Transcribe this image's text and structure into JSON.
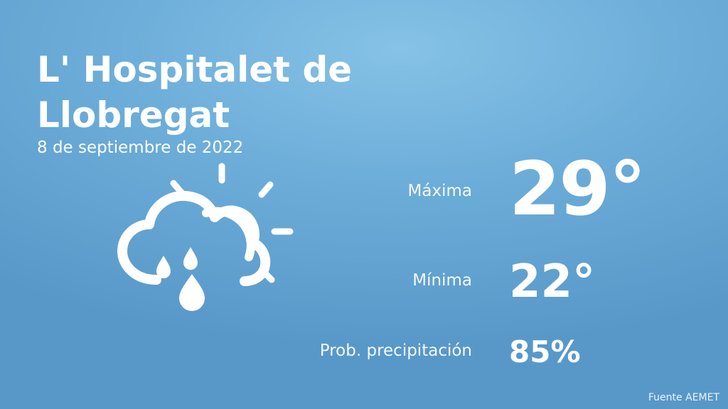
{
  "location": {
    "name": " L' Hospitalet de\nLlobregat",
    "date": "8 de septiembre de 2022"
  },
  "forecast": {
    "condition_icon": "cloud-rain-sun-icon",
    "max_label": "Máxima",
    "max_value": "29°",
    "min_label": "Mínima",
    "min_value": "22°",
    "precip_label": "Prob. precipitación",
    "precip_value": "85%"
  },
  "footer": {
    "source": "Fuente AEMET"
  }
}
